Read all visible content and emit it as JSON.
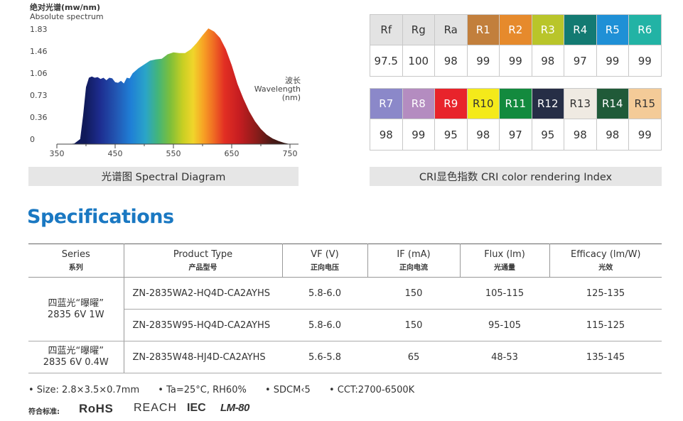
{
  "spectrum": {
    "title": "绝对光谱(mw/nm)",
    "subtitle": "Absolute spectrum",
    "y_ticks": [
      "1.83",
      "1.46",
      "1.06",
      "0.73",
      "0.36",
      "0"
    ],
    "x_ticks": [
      "350",
      "450",
      "550",
      "650",
      "750"
    ],
    "wavelength_cn": "波长",
    "wavelength_en": "Wavelength",
    "wavelength_unit": "(nm)",
    "caption": "光谱图  Spectral Diagram"
  },
  "chart_data": {
    "type": "area",
    "title": "绝对光谱(mw/nm)",
    "xlabel": "Wavelength (nm)",
    "ylabel": "Absolute spectrum",
    "xlim": [
      350,
      750
    ],
    "ylim": [
      0,
      1.83
    ],
    "x": [
      370,
      380,
      390,
      395,
      400,
      405,
      410,
      415,
      420,
      425,
      430,
      435,
      440,
      445,
      450,
      455,
      460,
      465,
      470,
      475,
      480,
      490,
      500,
      510,
      520,
      530,
      540,
      550,
      560,
      570,
      580,
      590,
      600,
      610,
      620,
      630,
      640,
      650,
      660,
      670,
      680,
      690,
      700,
      710,
      720,
      730,
      740,
      750
    ],
    "y": [
      0.0,
      0.01,
      0.08,
      0.45,
      0.9,
      1.05,
      1.07,
      1.05,
      1.06,
      1.03,
      1.05,
      1.01,
      1.05,
      1.04,
      0.98,
      0.97,
      1.0,
      0.96,
      1.05,
      1.04,
      1.12,
      1.2,
      1.26,
      1.32,
      1.34,
      1.35,
      1.42,
      1.45,
      1.44,
      1.44,
      1.5,
      1.6,
      1.72,
      1.83,
      1.78,
      1.68,
      1.5,
      1.25,
      0.95,
      0.72,
      0.52,
      0.36,
      0.24,
      0.15,
      0.09,
      0.05,
      0.02,
      0.0
    ]
  },
  "cri": {
    "caption": "CRI显色指数  CRI color rendering Index",
    "table1": {
      "headers": [
        "Rf",
        "Rg",
        "Ra",
        "R1",
        "R2",
        "R3",
        "R4",
        "R5",
        "R6"
      ],
      "header_colors": [
        "#e3e3e3",
        "#e3e3e3",
        "#e3e3e3",
        "#c27f3c",
        "#e68a2c",
        "#b9c52a",
        "#137a72",
        "#1f90d6",
        "#22b3a5"
      ],
      "header_dark": [
        true,
        true,
        true,
        false,
        false,
        false,
        false,
        false,
        false
      ],
      "values": [
        "97.5",
        "100",
        "98",
        "99",
        "99",
        "98",
        "97",
        "99",
        "99"
      ]
    },
    "table2": {
      "headers": [
        "R7",
        "R8",
        "R9",
        "R10",
        "R11",
        "R12",
        "R13",
        "R14",
        "R15"
      ],
      "header_colors": [
        "#8b88c9",
        "#b48cc0",
        "#e8232b",
        "#f4ea1a",
        "#138a3e",
        "#262e46",
        "#efeae2",
        "#205a38",
        "#f4cb98"
      ],
      "header_dark": [
        false,
        false,
        false,
        true,
        false,
        false,
        true,
        false,
        true
      ],
      "values": [
        "98",
        "99",
        "95",
        "98",
        "97",
        "95",
        "98",
        "98",
        "99"
      ]
    }
  },
  "specifications": {
    "heading": "Specifications",
    "columns": [
      {
        "en": "Series",
        "cn": "系列"
      },
      {
        "en": "Product Type",
        "cn": "产品型号"
      },
      {
        "en": "VF (V)",
        "cn": "正向电压"
      },
      {
        "en": "IF (mA)",
        "cn": "正向电流"
      },
      {
        "en": "Flux (lm)",
        "cn": "光通量"
      },
      {
        "en": "Efficacy (lm/W)",
        "cn": "光效"
      }
    ],
    "groups": [
      {
        "series_line1": "四蓝光“曝曜”",
        "series_line2": "2835 6V 1W",
        "rows": [
          {
            "type": "ZN-2835WA2-HQ4D-CA2AYHS",
            "vf": "5.8-6.0",
            "if": "150",
            "flux": "105-115",
            "efficacy": "125-135"
          },
          {
            "type": "ZN-2835W95-HQ4D-CA2AYHS",
            "vf": "5.8-6.0",
            "if": "150",
            "flux": "95-105",
            "efficacy": "115-125"
          }
        ]
      },
      {
        "series_line1": "四蓝光“曝曜”",
        "series_line2": "2835 6V 0.4W",
        "rows": [
          {
            "type": "ZN-2835W48-HJ4D-CA2AYHS",
            "vf": "5.6-5.8",
            "if": "65",
            "flux": "48-53",
            "efficacy": "135-145"
          }
        ]
      }
    ]
  },
  "notes": {
    "size": "• Size: 2.8×3.5×0.7mm",
    "ta": "• Ta=25°C, RH60%",
    "sdcm": "• SDCM‹5",
    "cct": "• CCT:2700-6500K"
  },
  "certifications": {
    "label": "符合标准:",
    "rohs": "RoHS",
    "reach": "REACH",
    "iec": "IEC",
    "lm80": "LM-80"
  }
}
